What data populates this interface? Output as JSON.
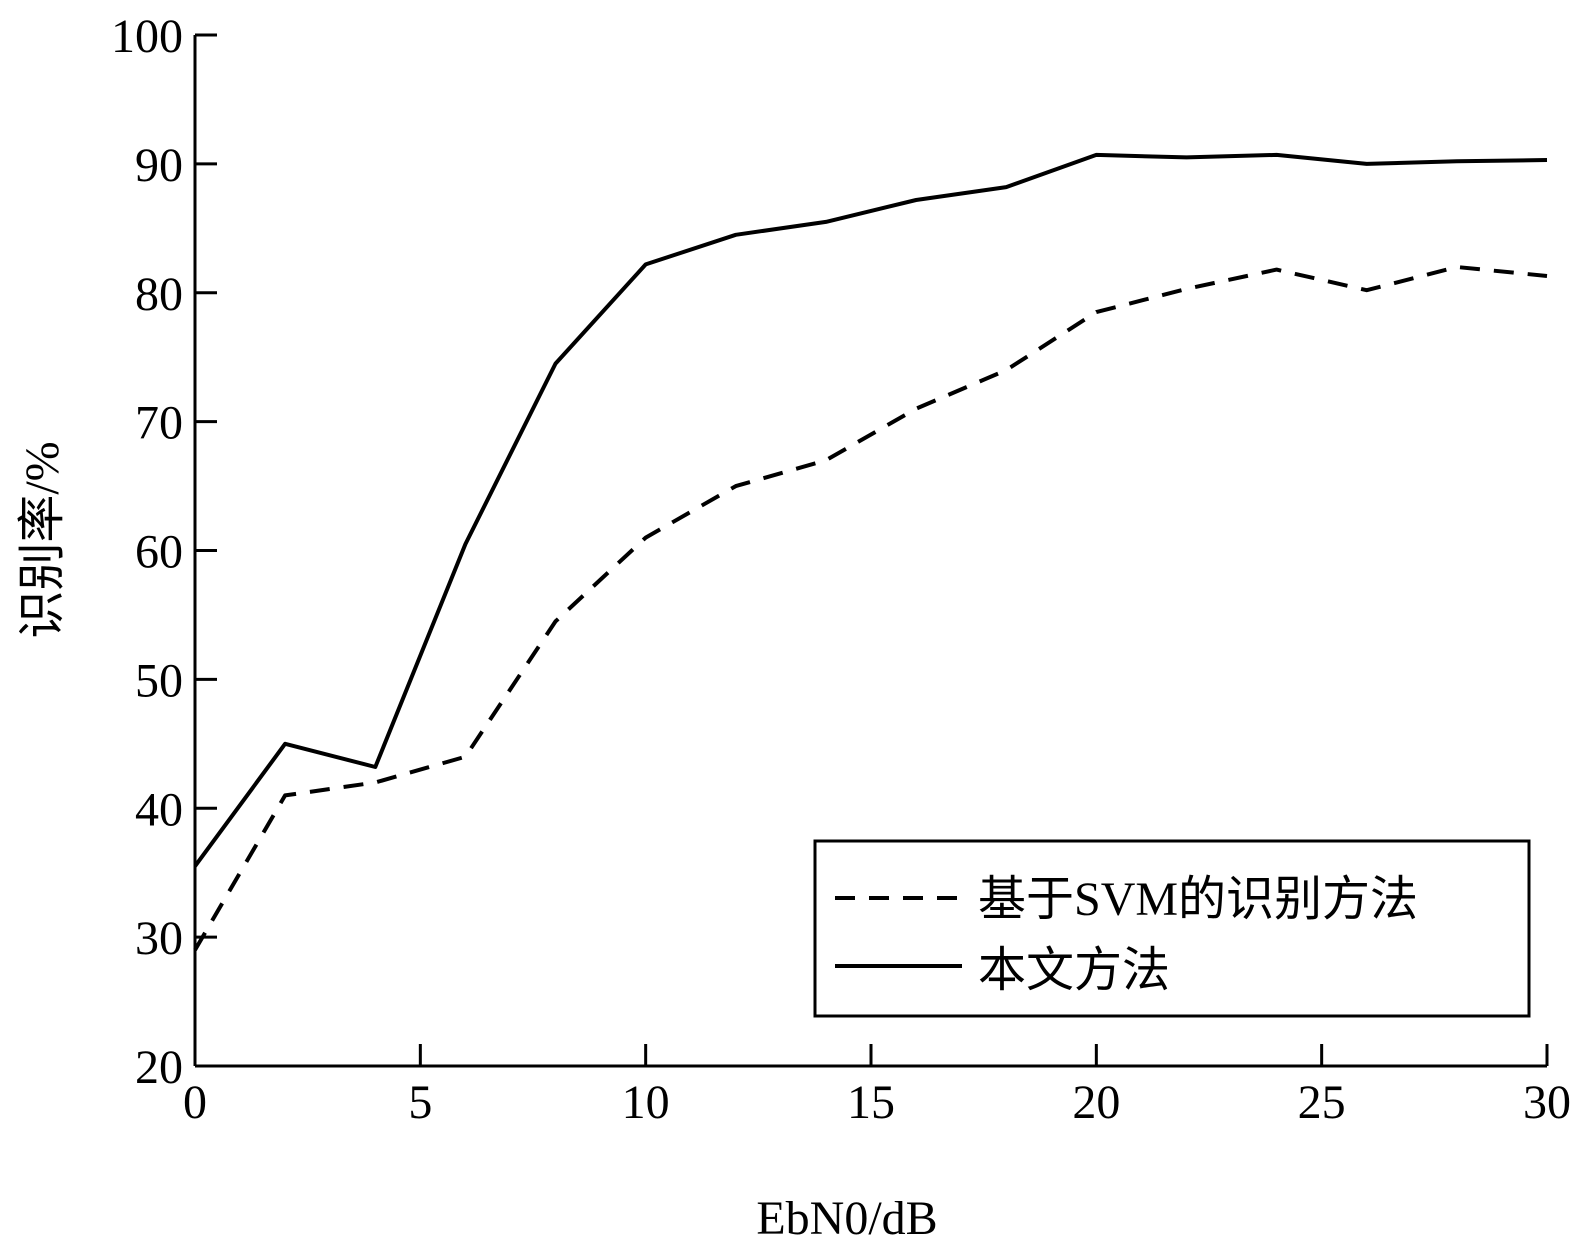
{
  "chart_data": {
    "type": "line",
    "xlabel": "EbN0/dB",
    "ylabel": "识别率/%",
    "xlim": [
      0,
      30
    ],
    "ylim": [
      20,
      100
    ],
    "xticks": [
      0,
      5,
      10,
      15,
      20,
      25,
      30
    ],
    "yticks": [
      20,
      30,
      40,
      50,
      60,
      70,
      80,
      90,
      100
    ],
    "grid": false,
    "legend_position": "bottom-right",
    "x": [
      0,
      2,
      4,
      6,
      8,
      10,
      12,
      14,
      16,
      18,
      20,
      22,
      24,
      26,
      28,
      30
    ],
    "series": [
      {
        "name": "基于SVM的识别方法",
        "style": "dashed",
        "color": "#000000",
        "values": [
          29.0,
          41.0,
          42.0,
          44.0,
          54.5,
          61.0,
          65.0,
          67.0,
          71.0,
          74.0,
          78.5,
          80.3,
          81.8,
          80.2,
          82.0,
          81.3
        ]
      },
      {
        "name": "本文方法",
        "style": "solid",
        "color": "#000000",
        "values": [
          35.5,
          45.0,
          43.2,
          60.5,
          74.5,
          82.2,
          84.5,
          85.5,
          87.2,
          88.2,
          90.7,
          90.5,
          90.7,
          90.0,
          90.2,
          90.3
        ]
      }
    ]
  }
}
